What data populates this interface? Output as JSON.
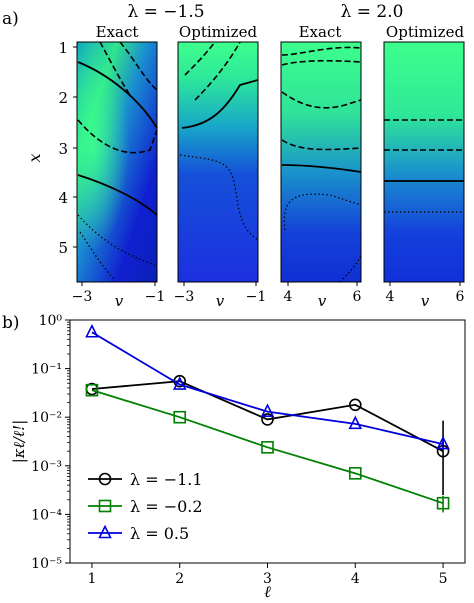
{
  "panel_a": {
    "label": "a)",
    "groups": [
      {
        "title": "λ = −1.5",
        "subtitles": [
          "Exact",
          "Optimized"
        ],
        "x_ticks": [
          "−3",
          "−1"
        ]
      },
      {
        "title": "λ = 2.0",
        "subtitles": [
          "Exact",
          "Optimized"
        ],
        "x_ticks": [
          "4",
          "6"
        ]
      }
    ],
    "y_label": "x",
    "x_label": "v",
    "y_ticks": [
      "1",
      "2",
      "3",
      "4",
      "5"
    ],
    "colormap": [
      "#0000cc",
      "#22ff88"
    ]
  },
  "chart_data": {
    "type": "line",
    "label": "b)",
    "xlabel": "ℓ",
    "ylabel": "|κℓ/ℓ!|",
    "x": [
      1,
      2,
      3,
      4,
      5
    ],
    "ylog": true,
    "ylim": [
      1e-05,
      1
    ],
    "y_tick_labels": [
      "10⁰",
      "10⁻¹",
      "10⁻²",
      "10⁻³",
      "10⁻⁴",
      "10⁻⁵"
    ],
    "x_tick_labels": [
      "1",
      "2",
      "3",
      "4",
      "5"
    ],
    "legend_position": "bottom-left",
    "series": [
      {
        "name": "λ = −1.1",
        "color": "#000000",
        "marker": "circle",
        "values": [
          0.038,
          0.055,
          0.009,
          0.018,
          0.002
        ],
        "error_last": [
          0.00025,
          0.0085
        ]
      },
      {
        "name": "λ = −0.2",
        "color": "#008000",
        "marker": "square",
        "values": [
          0.036,
          0.01,
          0.0024,
          0.0007,
          0.00017
        ],
        "error_last": [
          0.00011,
          0.00024
        ]
      },
      {
        "name": "λ = 0.5",
        "color": "#0000dd",
        "marker": "triangle",
        "values": [
          0.56,
          0.047,
          0.013,
          0.0073,
          0.0028
        ],
        "error_last": [
          0.0022,
          0.0035
        ]
      }
    ]
  }
}
